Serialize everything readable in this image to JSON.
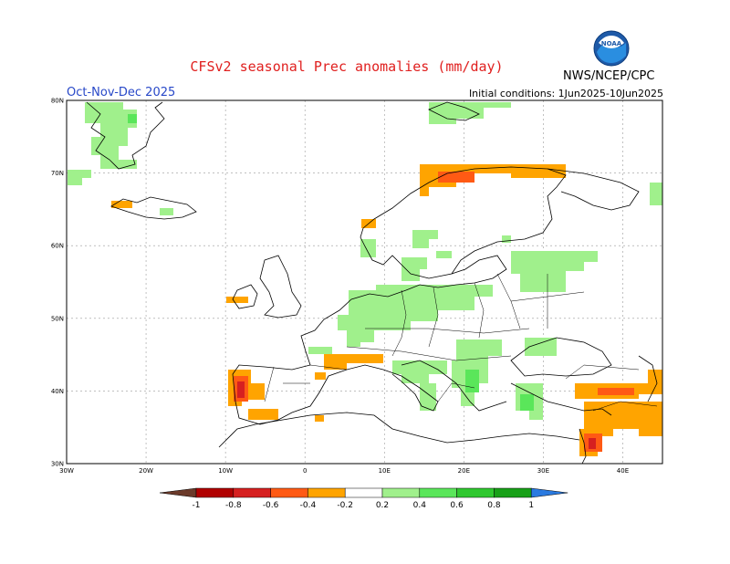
{
  "header": {
    "title": "CFSv2 seasonal Prec anomalies (mm/day)",
    "season": "Oct-Nov-Dec 2025",
    "initial_conditions": "Initial conditions: 1Jun2025-10Jun2025",
    "agency": "NWS/NCEP/CPC",
    "logo_text": "NOAA"
  },
  "map_data": {
    "projection": "lat-lon",
    "lon_range": [
      -30,
      45
    ],
    "lat_range": [
      30,
      80
    ],
    "gridlines": true,
    "lat_ticks": [
      "30N",
      "40N",
      "50N",
      "60N",
      "70N",
      "80N"
    ],
    "lon_ticks": [
      "30W",
      "20W",
      "10W",
      "0",
      "10E",
      "20E",
      "30E",
      "40E"
    ]
  },
  "colorbar": {
    "labels": [
      "-1",
      "-0.8",
      "-0.6",
      "-0.4",
      "-0.2",
      "0.2",
      "0.4",
      "0.6",
      "0.8",
      "1"
    ],
    "colors": {
      "lt_m1": "#6b3a2a",
      "m1_m08": "#b00000",
      "m08_m06": "#d62020",
      "m06_m04": "#ff5a14",
      "m04_m02": "#ffa400",
      "neutral": "#ffffff",
      "p02_p04": "#a0f08c",
      "p04_p06": "#5ae65a",
      "p06_p08": "#2fc82f",
      "p08_p1": "#18a018",
      "gt_p1": "#2a7ae0"
    }
  }
}
